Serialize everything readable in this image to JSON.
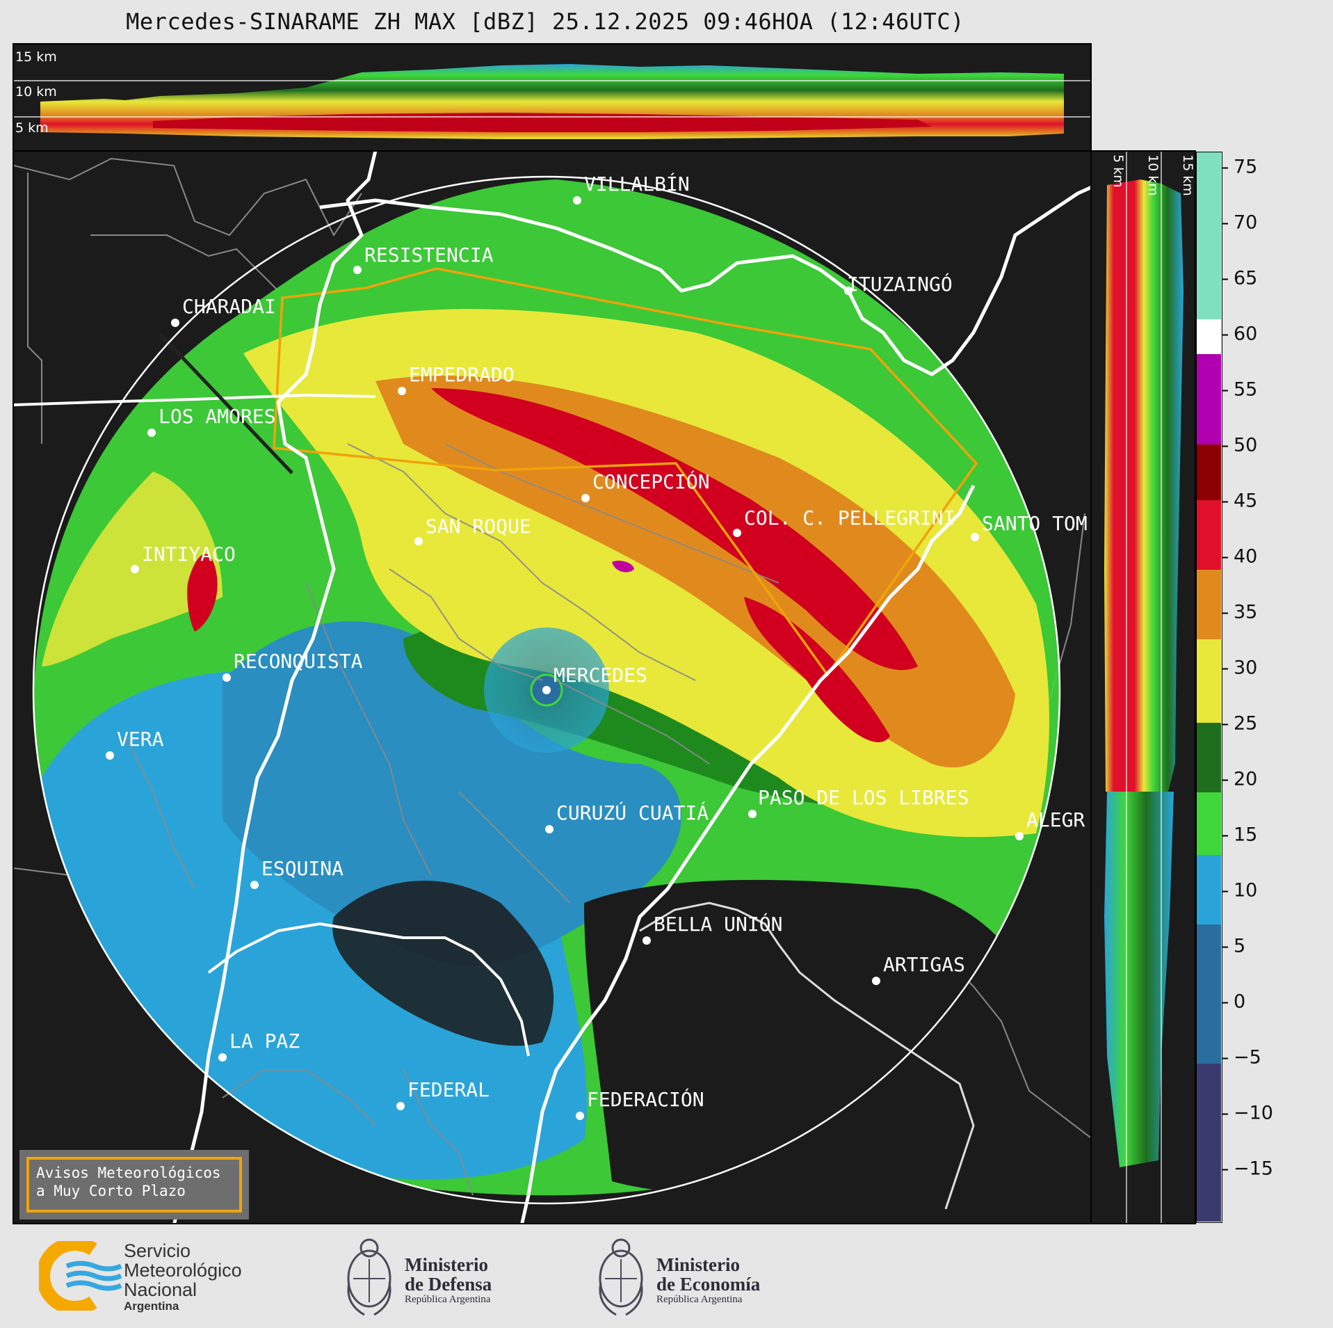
{
  "title": "Mercedes-SINARAME ZH MAX [dBZ] 25.12.2025 09:46HOA (12:46UTC)",
  "top_panel": {
    "height_labels": [
      "15 km",
      "10 km",
      "5 km"
    ]
  },
  "side_panel": {
    "height_labels": [
      "5 km",
      "10 km",
      "15 km"
    ]
  },
  "colorbar": {
    "unit": "dBZ",
    "ticks": [
      "75",
      "70",
      "65",
      "60",
      "55",
      "50",
      "45",
      "40",
      "35",
      "30",
      "25",
      "20",
      "15",
      "10",
      "5",
      "0",
      "−5",
      "−10",
      "−15"
    ],
    "colors": {
      "light_green_top": "#7fe0c0",
      "white": "#ffffff",
      "magenta": "#b000b0",
      "dark_red": "#8b0000",
      "red": "#e0102a",
      "orange": "#e08a1e",
      "yellow": "#e8e83a",
      "dark_green": "#1e6e1e",
      "green": "#3fd73a",
      "light_blue": "#2aa4d8",
      "blue": "#2a6ea0",
      "navy": "#3a3a6e"
    }
  },
  "places": [
    {
      "name": "VILLALBÍN"
    },
    {
      "name": "RESISTENCIA"
    },
    {
      "name": "CHARADAI"
    },
    {
      "name": "ITUZAINGÓ"
    },
    {
      "name": "EMPEDRADO"
    },
    {
      "name": "LOS AMORES"
    },
    {
      "name": "CONCEPCIÓN"
    },
    {
      "name": "SAN ROQUE"
    },
    {
      "name": "COL. C. PELLEGRINI"
    },
    {
      "name": "SANTO TOM"
    },
    {
      "name": "INTIYACO"
    },
    {
      "name": "RECONQUISTA"
    },
    {
      "name": "MERCEDES"
    },
    {
      "name": "VERA"
    },
    {
      "name": "PASO DE LOS LIBRES"
    },
    {
      "name": "CURUZÚ CUATIÁ"
    },
    {
      "name": "ALEGR"
    },
    {
      "name": "ESQUINA"
    },
    {
      "name": "BELLA UNIÓN"
    },
    {
      "name": "ARTIGAS"
    },
    {
      "name": "LA PAZ"
    },
    {
      "name": "FEDERAL"
    },
    {
      "name": "FEDERACIÓN"
    }
  ],
  "avisos": {
    "line1": "Avisos Meteorológicos",
    "line2": "a Muy Corto Plazo",
    "border_color": "#f0a30a"
  },
  "footer": {
    "smn": {
      "line1": "Servicio",
      "line2": "Meteorológico",
      "line3": "Nacional",
      "line4": "Argentina"
    },
    "defensa": {
      "line1": "Ministerio",
      "line2": "de Defensa",
      "line3": "República Argentina"
    },
    "economia": {
      "line1": "Ministerio",
      "line2": "de Economía",
      "line3": "República Argentina"
    }
  }
}
